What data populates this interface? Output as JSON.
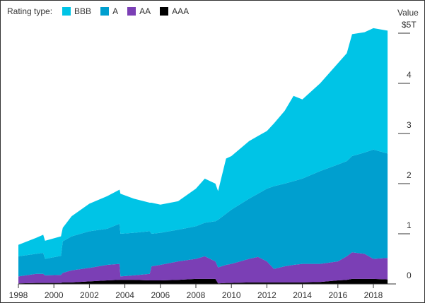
{
  "chart_data": {
    "type": "area",
    "stacked": true,
    "legend_title": "Rating type:",
    "ylabel": "Value",
    "ylim": [
      0,
      5.3
    ],
    "xlim": [
      1998,
      2018.8
    ],
    "x_ticks": [
      "1998",
      "2000",
      "2002",
      "2004",
      "2006",
      "2008",
      "2010",
      "2012",
      "2014",
      "2016",
      "2018"
    ],
    "y_ticks": [
      {
        "v": 0,
        "label": "0"
      },
      {
        "v": 1,
        "label": "1"
      },
      {
        "v": 2,
        "label": "2"
      },
      {
        "v": 3,
        "label": "3"
      },
      {
        "v": 4,
        "label": "4"
      },
      {
        "v": 5,
        "label": "$5T"
      }
    ],
    "x": [
      1998,
      1999,
      1999.4,
      1999.5,
      2000.4,
      2000.5,
      2001,
      2002,
      2003,
      2003.7,
      2003.75,
      2004.5,
      2005.4,
      2005.5,
      2006,
      2007,
      2008,
      2008.5,
      2009.1,
      2009.25,
      2009.7,
      2010,
      2011,
      2011.5,
      2012,
      2012.4,
      2013,
      2013.5,
      2014,
      2015,
      2016,
      2016.5,
      2016.8,
      2017.5,
      2018,
      2018.8
    ],
    "series": [
      {
        "name": "AAA",
        "color": "#000000",
        "values": [
          0.01,
          0.02,
          0.02,
          0.02,
          0.02,
          0.03,
          0.03,
          0.05,
          0.07,
          0.08,
          0.08,
          0.08,
          0.07,
          0.07,
          0.07,
          0.08,
          0.1,
          0.1,
          0.1,
          0.01,
          0.02,
          0.02,
          0.03,
          0.03,
          0.03,
          0.03,
          0.03,
          0.03,
          0.03,
          0.04,
          0.07,
          0.08,
          0.1,
          0.1,
          0.1,
          0.09
        ]
      },
      {
        "name": "AA",
        "color": "#7b3fb5",
        "values": [
          0.14,
          0.18,
          0.18,
          0.15,
          0.16,
          0.19,
          0.24,
          0.27,
          0.31,
          0.32,
          0.07,
          0.09,
          0.13,
          0.28,
          0.31,
          0.37,
          0.4,
          0.45,
          0.35,
          0.32,
          0.36,
          0.38,
          0.47,
          0.51,
          0.42,
          0.27,
          0.32,
          0.35,
          0.37,
          0.36,
          0.38,
          0.47,
          0.53,
          0.5,
          0.4,
          0.43
        ]
      },
      {
        "name": "A",
        "color": "#009fcf",
        "values": [
          0.4,
          0.4,
          0.42,
          0.33,
          0.38,
          0.63,
          0.68,
          0.73,
          0.72,
          0.8,
          0.85,
          0.85,
          0.85,
          0.65,
          0.64,
          0.63,
          0.65,
          0.67,
          0.8,
          0.95,
          1.02,
          1.08,
          1.2,
          1.26,
          1.45,
          1.65,
          1.65,
          1.67,
          1.7,
          1.85,
          1.93,
          1.9,
          1.92,
          2.02,
          2.18,
          2.08
        ]
      },
      {
        "name": "BBB",
        "color": "#00c4e6",
        "values": [
          0.23,
          0.32,
          0.36,
          0.36,
          0.39,
          0.27,
          0.4,
          0.55,
          0.65,
          0.68,
          0.8,
          0.68,
          0.57,
          0.62,
          0.56,
          0.57,
          0.75,
          0.88,
          0.75,
          0.57,
          1.1,
          1.07,
          1.15,
          1.15,
          1.15,
          1.25,
          1.45,
          1.7,
          1.58,
          1.75,
          2.02,
          2.15,
          2.43,
          2.4,
          2.42,
          2.45
        ]
      }
    ],
    "legend_order": [
      "BBB",
      "A",
      "AA",
      "AAA"
    ]
  }
}
